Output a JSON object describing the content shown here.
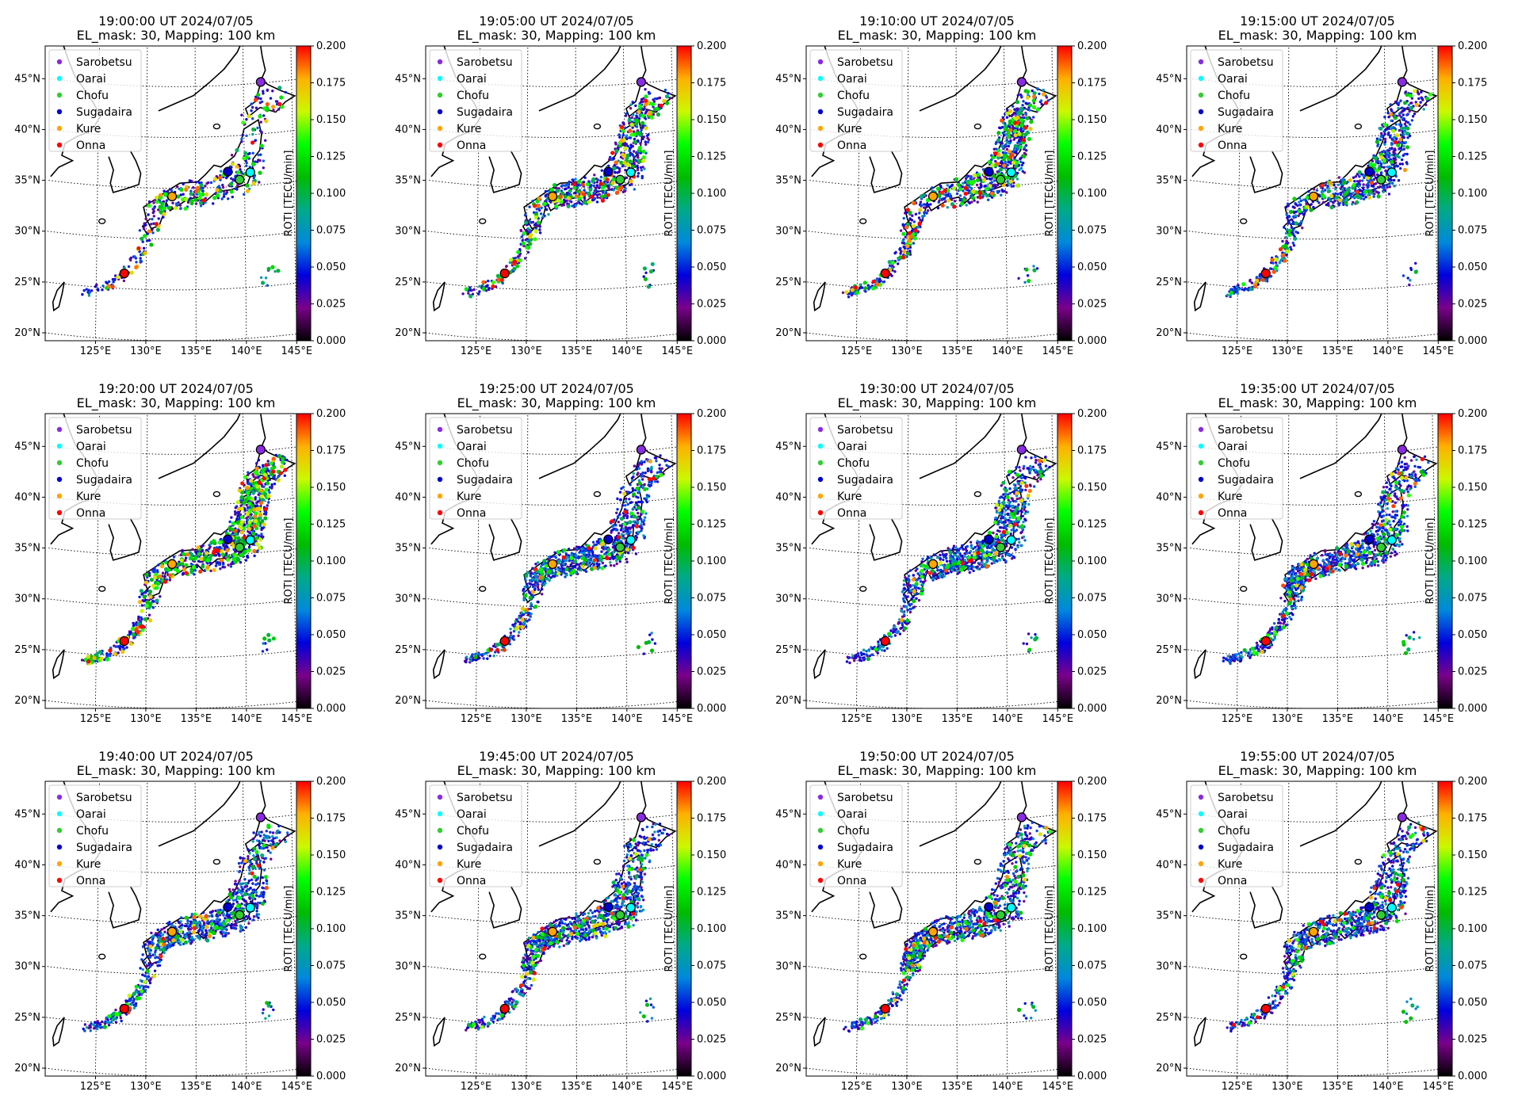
{
  "figure": {
    "subtitle": "EL_mask: 30, Mapping: 100 km",
    "colorbar": {
      "label": "ROTI [TECU/min]",
      "min": 0.0,
      "max": 0.2,
      "ticks": [
        "0.000",
        "0.025",
        "0.050",
        "0.075",
        "0.100",
        "0.125",
        "0.150",
        "0.175",
        "0.200"
      ],
      "colormap": "nipy_spectral",
      "colors": [
        "#000000",
        "#7a008a",
        "#0000dd",
        "#0088dd",
        "#00aa88",
        "#00bb00",
        "#00ff00",
        "#ccf800",
        "#ffb000",
        "#ff0000"
      ]
    },
    "map": {
      "lat_ticks": [
        "20°N",
        "25°N",
        "30°N",
        "35°N",
        "40°N",
        "45°N"
      ],
      "lon_ticks": [
        "125°E",
        "130°E",
        "135°E",
        "140°E",
        "145°E"
      ],
      "lat_range": [
        20,
        49
      ],
      "lon_range": [
        120,
        146
      ]
    },
    "legend": [
      {
        "name": "Sarobetsu",
        "color": "#8a2be2"
      },
      {
        "name": "Oarai",
        "color": "#00ffff"
      },
      {
        "name": "Chofu",
        "color": "#32cd32"
      },
      {
        "name": "Sugadaira",
        "color": "#0000cd"
      },
      {
        "name": "Kure",
        "color": "#ffa500"
      },
      {
        "name": "Onna",
        "color": "#ff0000"
      }
    ],
    "stations": [
      {
        "name": "Sarobetsu",
        "lon": 141.8,
        "lat": 45.1,
        "color": "#8a2be2"
      },
      {
        "name": "Oarai",
        "lon": 140.6,
        "lat": 36.3,
        "color": "#00ffff"
      },
      {
        "name": "Chofu",
        "lon": 139.5,
        "lat": 35.65,
        "color": "#32cd32"
      },
      {
        "name": "Sugadaira",
        "lon": 138.3,
        "lat": 36.5,
        "color": "#0000cd"
      },
      {
        "name": "Kure",
        "lon": 132.6,
        "lat": 34.2,
        "color": "#ffa500"
      },
      {
        "name": "Onna",
        "lon": 127.8,
        "lat": 26.5,
        "color": "#ff0000"
      }
    ],
    "panels": [
      {
        "title": "19:00:00 UT 2024/07/05"
      },
      {
        "title": "19:05:00 UT 2024/07/05"
      },
      {
        "title": "19:10:00 UT 2024/07/05"
      },
      {
        "title": "19:15:00 UT 2024/07/05"
      },
      {
        "title": "19:20:00 UT 2024/07/05"
      },
      {
        "title": "19:25:00 UT 2024/07/05"
      },
      {
        "title": "19:30:00 UT 2024/07/05"
      },
      {
        "title": "19:35:00 UT 2024/07/05"
      },
      {
        "title": "19:40:00 UT 2024/07/05"
      },
      {
        "title": "19:45:00 UT 2024/07/05"
      },
      {
        "title": "19:50:00 UT 2024/07/05"
      },
      {
        "title": "19:55:00 UT 2024/07/05"
      }
    ]
  }
}
